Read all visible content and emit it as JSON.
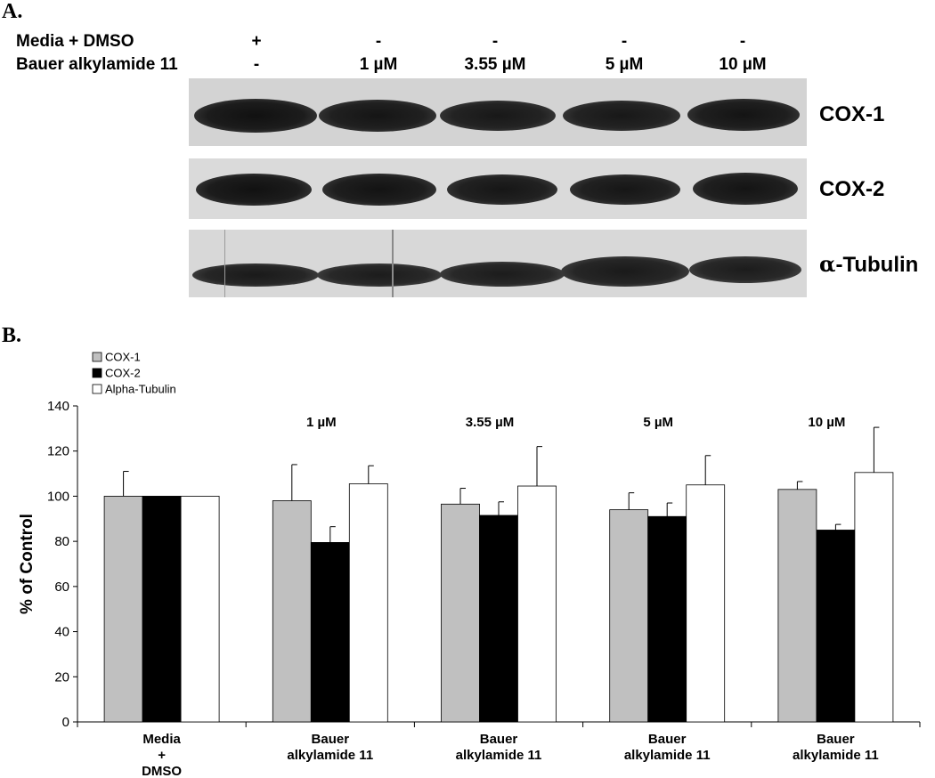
{
  "panel_a": {
    "label": "A.",
    "row_labels": [
      "Media + DMSO",
      "Bauer alkylamide 11"
    ],
    "lanes": [
      {
        "media": "+",
        "bauer": "-"
      },
      {
        "media": "-",
        "bauer": "1 µM"
      },
      {
        "media": "-",
        "bauer": "3.55 µM"
      },
      {
        "media": "-",
        "bauer": "5 µM"
      },
      {
        "media": "-",
        "bauer": "10 µM"
      }
    ],
    "blots": [
      {
        "name": "COX-1",
        "glyph": ""
      },
      {
        "name": "COX-2",
        "glyph": ""
      },
      {
        "name": "-Tubulin",
        "glyph": "α"
      }
    ]
  },
  "panel_b": {
    "label": "B."
  },
  "chart_data": {
    "type": "bar",
    "ylabel": "% of Control",
    "ylim": [
      0,
      140
    ],
    "yticks": [
      0,
      20,
      40,
      60,
      80,
      100,
      120,
      140
    ],
    "categories": [
      [
        "Media",
        "+",
        "DMSO"
      ],
      [
        "Bauer",
        "alkylamide 11"
      ],
      [
        "Bauer",
        "alkylamide 11"
      ],
      [
        "Bauer",
        "alkylamide 11"
      ],
      [
        "Bauer",
        "alkylamide 11"
      ]
    ],
    "group_annotations": [
      "",
      "1 µM",
      "3.55 µM",
      "5 µM",
      "10 µM"
    ],
    "legend_position": "top-left",
    "series": [
      {
        "name": "COX-1",
        "color": "#c0c0c0",
        "values": [
          100,
          98,
          96.5,
          94,
          103
        ],
        "errors": [
          11,
          16,
          7,
          7.5,
          3.5
        ]
      },
      {
        "name": "COX-2",
        "color": "#000000",
        "values": [
          100,
          79.5,
          91.5,
          91,
          85
        ],
        "errors": [
          0,
          7,
          6,
          6,
          2.5
        ]
      },
      {
        "name": "Alpha-Tubulin",
        "color": "#ffffff",
        "values": [
          100,
          105.5,
          104.5,
          105,
          110.5
        ],
        "errors": [
          0,
          8,
          17.5,
          13,
          20
        ]
      }
    ]
  }
}
